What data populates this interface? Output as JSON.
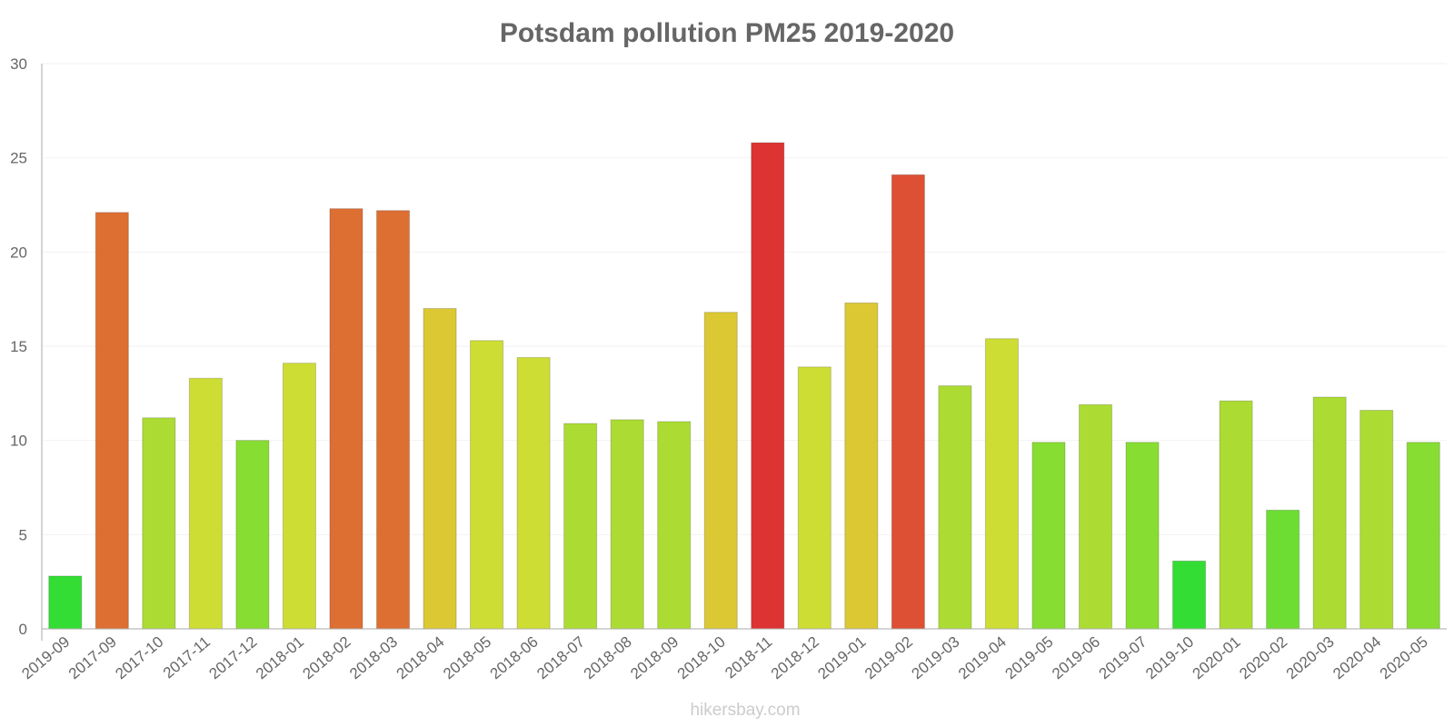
{
  "chart_data": {
    "type": "bar",
    "title": "Potsdam pollution PM25 2019-2020",
    "xlabel": "",
    "ylabel": "",
    "ylim": [
      0,
      30
    ],
    "yticks": [
      0,
      5,
      10,
      15,
      20,
      25,
      30
    ],
    "grid": true,
    "legend": "none",
    "categories": [
      "2019-09",
      "2017-09",
      "2017-10",
      "2017-11",
      "2017-12",
      "2018-01",
      "2018-02",
      "2018-03",
      "2018-04",
      "2018-05",
      "2018-06",
      "2018-07",
      "2018-08",
      "2018-09",
      "2018-10",
      "2018-11",
      "2018-12",
      "2019-01",
      "2019-02",
      "2019-03",
      "2019-04",
      "2019-05",
      "2019-06",
      "2019-07",
      "2019-10",
      "2020-01",
      "2020-02",
      "2020-03",
      "2020-04",
      "2020-05"
    ],
    "values": [
      2.8,
      22.1,
      11.2,
      13.3,
      10.0,
      14.1,
      22.3,
      22.2,
      17.0,
      15.3,
      14.4,
      10.9,
      11.1,
      11.0,
      16.8,
      25.8,
      13.9,
      17.3,
      24.1,
      12.9,
      15.4,
      9.9,
      11.9,
      9.9,
      3.6,
      12.1,
      6.3,
      12.3,
      11.6,
      9.9
    ],
    "colors": [
      "#33dd33",
      "#dd6f33",
      "#acdc33",
      "#cedd33",
      "#88dd33",
      "#cedd33",
      "#dd6f33",
      "#dd6f33",
      "#dcc833",
      "#cedd33",
      "#cedd33",
      "#acdc33",
      "#acdc33",
      "#acdc33",
      "#dcc833",
      "#dd3333",
      "#cedd33",
      "#dcc833",
      "#dd5033",
      "#acdc33",
      "#cedd33",
      "#88dd33",
      "#acdc33",
      "#88dd33",
      "#33dd33",
      "#acdc33",
      "#6ddd33",
      "#acdc33",
      "#acdc33",
      "#88dd33"
    ]
  },
  "credit": "hikersbay.com"
}
